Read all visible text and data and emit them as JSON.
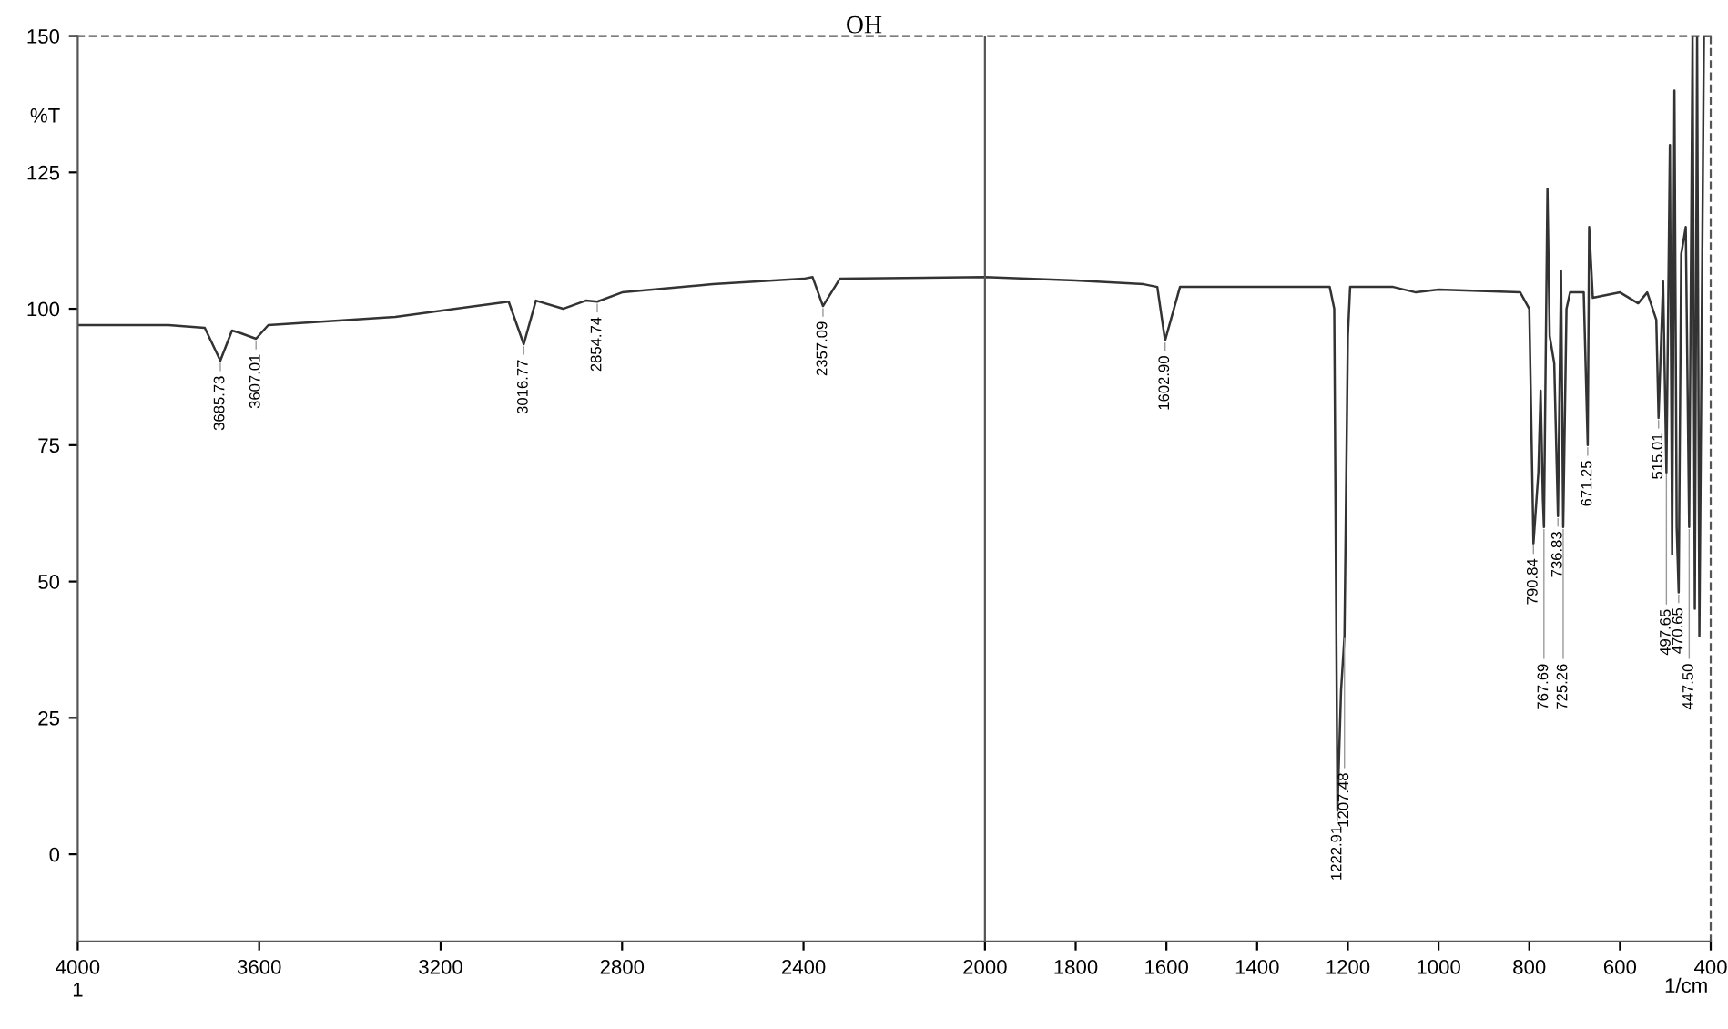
{
  "chart_data": {
    "type": "line",
    "xlabel": "1/cm",
    "ylabel": "%T",
    "xlim": [
      4000,
      400
    ],
    "ylim": [
      -16,
      150
    ],
    "xticks": [
      4000,
      3600,
      3200,
      2800,
      2400,
      2000,
      1800,
      1600,
      1400,
      1200,
      1000,
      800,
      600,
      400
    ],
    "yticks": [
      0,
      25,
      50,
      75,
      100,
      125,
      150
    ],
    "grid": false,
    "legend": false,
    "marker": "none",
    "line_style": "solid",
    "x": [
      4000,
      3800,
      3720,
      3685.73,
      3660,
      3640,
      3607.01,
      3580,
      3300,
      3050,
      3016.77,
      2990,
      2930,
      2880,
      2854.74,
      2800,
      2600,
      2400,
      2380,
      2357.09,
      2320,
      2000,
      1800,
      1650,
      1620,
      1602.9,
      1570,
      1400,
      1240,
      1230,
      1222.91,
      1215,
      1207.48,
      1200,
      1195,
      1100,
      1050,
      1000,
      820,
      800,
      790.84,
      780,
      775,
      770,
      767.69,
      760,
      755,
      745,
      736.83,
      730,
      725.26,
      718,
      710,
      680,
      671.25,
      668,
      660,
      600,
      560,
      540,
      520,
      515.01,
      505,
      497.65,
      490,
      485,
      480,
      475,
      470.65,
      465,
      455,
      447.5,
      440,
      435,
      430,
      425,
      415,
      405
    ],
    "series": [
      {
        "color": "#333333",
        "values": [
          97,
          97,
          96.5,
          90.5,
          96,
          95.5,
          94.5,
          97,
          98.5,
          101.3,
          93.5,
          101.5,
          100,
          101.5,
          101.3,
          103,
          104.5,
          105.5,
          105.8,
          100.5,
          105.5,
          105.8,
          105.2,
          104.5,
          104,
          94.2,
          104,
          104,
          104,
          100,
          8,
          30,
          40,
          95,
          104,
          104,
          103,
          103.5,
          103,
          100,
          57,
          70,
          85,
          65,
          60,
          122,
          95,
          90,
          62,
          107,
          60,
          100,
          103,
          103,
          75,
          115,
          102,
          103,
          101,
          103,
          98,
          80,
          105,
          70,
          130,
          55,
          140,
          60,
          48,
          110,
          115,
          60,
          150,
          45,
          150,
          40,
          150,
          150
        ]
      }
    ],
    "ref_lines": [
      {
        "axis": "x",
        "value": 2000,
        "color": "#555555",
        "line_style": "solid"
      }
    ],
    "annotations": [
      {
        "text": "3685.73",
        "x": 3685.73,
        "y": 90.5
      },
      {
        "text": "3607.01",
        "x": 3607.01,
        "y": 94.5
      },
      {
        "text": "3016.77",
        "x": 3016.77,
        "y": 93.5
      },
      {
        "text": "2854.74",
        "x": 2854.74,
        "y": 101.3
      },
      {
        "text": "2357.09",
        "x": 2357.09,
        "y": 100.5
      },
      {
        "text": "1602.90",
        "x": 1602.9,
        "y": 94.2
      },
      {
        "text": "1222.91",
        "x": 1222.91,
        "y": 8
      },
      {
        "text": "1207.48",
        "x": 1207.48,
        "y": 40
      },
      {
        "text": "790.84",
        "x": 790.84,
        "y": 57
      },
      {
        "text": "767.69",
        "x": 767.69,
        "y": 60
      },
      {
        "text": "736.83",
        "x": 736.83,
        "y": 62
      },
      {
        "text": "725.26",
        "x": 725.26,
        "y": 60
      },
      {
        "text": "671.25",
        "x": 671.25,
        "y": 75
      },
      {
        "text": "515.01",
        "x": 515.01,
        "y": 80
      },
      {
        "text": "497.65",
        "x": 497.65,
        "y": 70
      },
      {
        "text": "470.65",
        "x": 470.65,
        "y": 48
      },
      {
        "text": "447.50",
        "x": 447.5,
        "y": 60
      },
      "OH",
      "1"
    ]
  }
}
